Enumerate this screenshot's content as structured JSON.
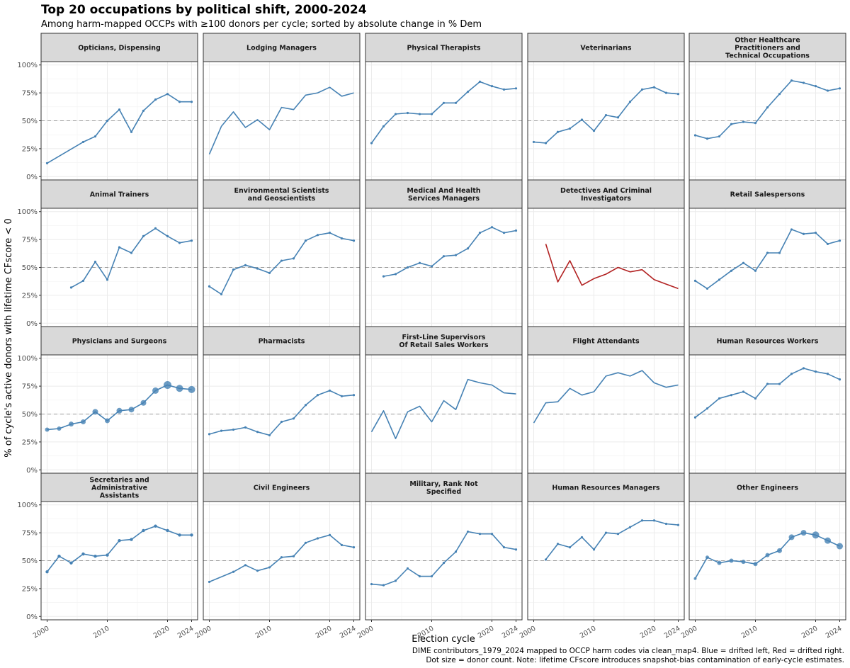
{
  "chart_data": {
    "type": "line",
    "layout": "facet-grid",
    "title": "Top 20 occupations by political shift, 2000-2024",
    "subtitle": "Among harm-mapped OCCPs with ≥100 donors per cycle; sorted by absolute change in % Dem",
    "xlabel": "Election cycle",
    "ylabel": "% of cycle's active donors with lifetime CFscore < 0",
    "caption": [
      "DIME contributors_1979_2024 mapped to OCCP harm codes via clean_map4. Blue = drifted left, Red = drifted right.",
      "Dot size = donor count.  Note: lifetime CFscore introduces snapshot-bias contamination of early-cycle estimates."
    ],
    "x_ticks": [
      2000,
      2010,
      2020,
      2024
    ],
    "xlim": [
      1999,
      2025
    ],
    "y_ticks": [
      0,
      25,
      50,
      75,
      100
    ],
    "y_tick_labels": [
      "0%",
      "25%",
      "50%",
      "75%",
      "100%"
    ],
    "ylim": [
      -3,
      103
    ],
    "reference_line": 50,
    "grid": true,
    "colors": {
      "left": "#4682b4",
      "right": "#b22222",
      "ref": "#999999",
      "strip_bg": "#d9d9d9",
      "strip_border": "#333333",
      "panel_border": "#333333",
      "grid": "#ebebeb"
    },
    "cycles": [
      2000,
      2002,
      2004,
      2006,
      2008,
      2010,
      2012,
      2014,
      2016,
      2018,
      2020,
      2022,
      2024
    ],
    "panels": [
      {
        "name": [
          "Opticians, Dispensing"
        ],
        "direction": "left",
        "dots": "small",
        "values": [
          12,
          null,
          null,
          31,
          36,
          50,
          60,
          40,
          59,
          69,
          74,
          67,
          67
        ]
      },
      {
        "name": [
          "Lodging Managers"
        ],
        "direction": "left",
        "dots": "none",
        "values": [
          20,
          45,
          58,
          44,
          51,
          42,
          62,
          60,
          73,
          75,
          80,
          72,
          75
        ]
      },
      {
        "name": [
          "Physical Therapists"
        ],
        "direction": "left",
        "dots": "small",
        "values": [
          30,
          45,
          56,
          57,
          56,
          56,
          66,
          66,
          76,
          85,
          81,
          78,
          79
        ]
      },
      {
        "name": [
          "Veterinarians"
        ],
        "direction": "left",
        "dots": "small",
        "values": [
          31,
          30,
          40,
          43,
          51,
          41,
          55,
          53,
          67,
          78,
          80,
          75,
          74
        ]
      },
      {
        "name": [
          "Other Healthcare",
          "Practitioners and",
          "Technical Occupations"
        ],
        "direction": "left",
        "dots": "small",
        "values": [
          37,
          34,
          36,
          47,
          49,
          48,
          62,
          74,
          86,
          84,
          81,
          77,
          79
        ]
      },
      {
        "name": [
          "Animal Trainers"
        ],
        "direction": "left",
        "dots": "small",
        "values": [
          null,
          null,
          32,
          38,
          55,
          39,
          68,
          63,
          78,
          85,
          78,
          72,
          74
        ]
      },
      {
        "name": [
          "Environmental Scientists",
          "and Geoscientists"
        ],
        "direction": "left",
        "dots": "small",
        "values": [
          33,
          26,
          48,
          52,
          49,
          45,
          56,
          58,
          74,
          79,
          81,
          76,
          74
        ]
      },
      {
        "name": [
          "Medical And Health",
          "Services Managers"
        ],
        "direction": "left",
        "dots": "small",
        "values": [
          null,
          42,
          44,
          50,
          54,
          51,
          60,
          61,
          67,
          81,
          86,
          81,
          83
        ]
      },
      {
        "name": [
          "Detectives And Criminal",
          "Investigators"
        ],
        "direction": "right",
        "dots": "none",
        "values": [
          null,
          71,
          37,
          56,
          34,
          40,
          44,
          50,
          46,
          48,
          39,
          35,
          31
        ]
      },
      {
        "name": [
          "Retail Salespersons"
        ],
        "direction": "left",
        "dots": "small",
        "values": [
          38,
          31,
          39,
          47,
          54,
          47,
          63,
          63,
          84,
          80,
          81,
          71,
          74
        ]
      },
      {
        "name": [
          "Physicians and Surgeons"
        ],
        "direction": "left",
        "dots": "large",
        "values": [
          36,
          37,
          41,
          43,
          52,
          44,
          53,
          54,
          60,
          71,
          76,
          73,
          72
        ],
        "dot_sizes": [
          3,
          3,
          3.5,
          3.5,
          4,
          3.5,
          4,
          4,
          4,
          4.5,
          5.5,
          5,
          5
        ]
      },
      {
        "name": [
          "Pharmacists"
        ],
        "direction": "left",
        "dots": "small",
        "values": [
          32,
          35,
          36,
          38,
          34,
          31,
          43,
          46,
          58,
          67,
          71,
          66,
          67
        ]
      },
      {
        "name": [
          "First-Line Supervisors",
          "Of Retail Sales Workers"
        ],
        "direction": "left",
        "dots": "none",
        "values": [
          34,
          53,
          28,
          52,
          57,
          43,
          62,
          54,
          81,
          78,
          76,
          69,
          68
        ]
      },
      {
        "name": [
          "Flight Attendants"
        ],
        "direction": "left",
        "dots": "none",
        "values": [
          42,
          60,
          61,
          73,
          67,
          70,
          84,
          87,
          84,
          89,
          78,
          74,
          76
        ]
      },
      {
        "name": [
          "Human Resources Workers"
        ],
        "direction": "left",
        "dots": "small",
        "values": [
          47,
          55,
          64,
          67,
          70,
          64,
          77,
          77,
          86,
          91,
          88,
          86,
          81
        ]
      },
      {
        "name": [
          "Secretaries and",
          "Administrative",
          "Assistants"
        ],
        "direction": "left",
        "dots": "medium",
        "values": [
          40,
          54,
          48,
          56,
          54,
          55,
          68,
          69,
          77,
          81,
          77,
          73,
          73
        ]
      },
      {
        "name": [
          "Civil Engineers"
        ],
        "direction": "left",
        "dots": "small",
        "values": [
          31,
          null,
          40,
          46,
          41,
          44,
          53,
          54,
          66,
          70,
          73,
          64,
          62
        ]
      },
      {
        "name": [
          "Military, Rank Not",
          "Specified"
        ],
        "direction": "left",
        "dots": "small",
        "values": [
          29,
          28,
          32,
          43,
          36,
          36,
          48,
          58,
          76,
          74,
          74,
          62,
          60
        ]
      },
      {
        "name": [
          "Human Resources Managers"
        ],
        "direction": "left",
        "dots": "small",
        "values": [
          null,
          51,
          65,
          62,
          71,
          60,
          75,
          74,
          80,
          86,
          86,
          83,
          82
        ]
      },
      {
        "name": [
          "Other Engineers"
        ],
        "direction": "left",
        "dots": "large",
        "values": [
          34,
          53,
          48,
          50,
          49,
          47,
          55,
          59,
          71,
          75,
          73,
          68,
          63
        ],
        "dot_sizes": [
          2,
          2.5,
          3,
          3,
          3,
          3,
          3,
          3.5,
          4,
          4,
          5,
          4.5,
          4.5
        ]
      }
    ]
  }
}
